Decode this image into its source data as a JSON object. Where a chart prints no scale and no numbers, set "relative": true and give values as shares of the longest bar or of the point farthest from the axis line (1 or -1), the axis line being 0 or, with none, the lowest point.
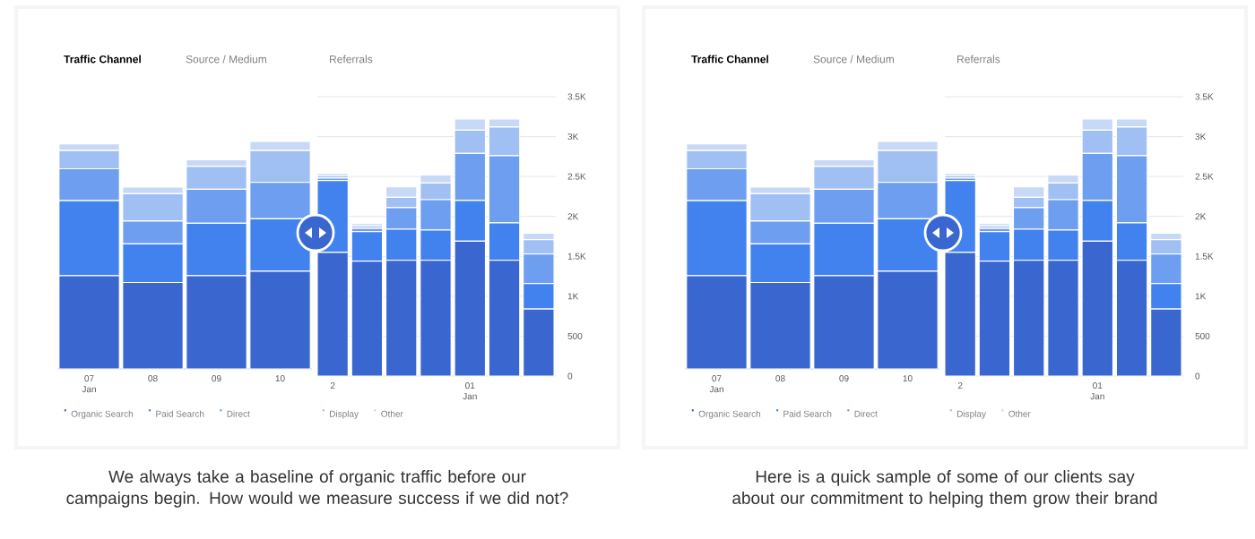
{
  "chart_data": [
    {
      "type": "bar",
      "title": "Traffic Channel",
      "subtitle": "Source / Medium",
      "categories": [
        "07 Jan",
        "08",
        "09",
        "10"
      ],
      "stacked": true,
      "relative": true,
      "legend": "bottom",
      "series": [
        {
          "name": "Organic Search",
          "color": "#3a66d0",
          "values": [
            0.41,
            0.38,
            0.41,
            0.43
          ]
        },
        {
          "name": "Paid Search",
          "color": "#4282ee",
          "values": [
            0.33,
            0.17,
            0.23,
            0.23
          ]
        },
        {
          "name": "Direct",
          "color": "#6d9ef0",
          "values": [
            0.14,
            0.1,
            0.15,
            0.16
          ]
        },
        {
          "color": "#a0bff3",
          "values": [
            0.08,
            0.12,
            0.1,
            0.14
          ]
        },
        {
          "color": "#c8d9f8",
          "values": [
            0.03,
            0.03,
            0.03,
            0.04
          ]
        }
      ],
      "annotations": [
        "We always take a baseline of organic traffic before our campaigns begin. How would we measure success if we did not?"
      ]
    },
    {
      "type": "bar",
      "title": "Referrals",
      "categories": [
        "2",
        null,
        null,
        null,
        "01 Jan",
        null,
        null
      ],
      "stacked": true,
      "ylim": [
        0,
        3500
      ],
      "grid": "y",
      "legend": "bottom",
      "yticks": [
        0,
        500,
        {
          "value": 1000,
          "label": "1K"
        },
        {
          "value": 1500,
          "label": "1.5K"
        },
        {
          "value": 2000,
          "label": "2K"
        },
        {
          "value": 2500,
          "label": "2.5K"
        },
        {
          "value": 3000,
          "label": "3K"
        },
        {
          "value": 3500,
          "label": "3.5K"
        }
      ],
      "series": [
        {
          "color": "#3a66d0",
          "values": [
            1550,
            1440,
            1450,
            1450,
            1690,
            1450,
            840
          ]
        },
        {
          "color": "#4282ee",
          "values": [
            900,
            370,
            390,
            380,
            510,
            470,
            320
          ]
        },
        {
          "color": "#6d9ef0",
          "values": [
            30,
            40,
            270,
            380,
            590,
            840,
            370
          ]
        },
        {
          "name": "Display",
          "color": "#a0bff3",
          "values": [
            30,
            30,
            130,
            210,
            290,
            360,
            180
          ]
        },
        {
          "name": "Other",
          "color": "#c8d9f8",
          "values": [
            30,
            30,
            130,
            100,
            140,
            100,
            80
          ]
        }
      ]
    },
    {
      "type": "bar",
      "title": "Traffic Channel",
      "subtitle": "Source / Medium",
      "categories": [
        "07 Jan",
        "08",
        "09",
        "10"
      ],
      "stacked": true,
      "relative": true,
      "legend": "bottom",
      "series": [
        {
          "name": "Organic Search",
          "color": "#3a66d0",
          "values": [
            0.41,
            0.38,
            0.41,
            0.43
          ]
        },
        {
          "name": "Paid Search",
          "color": "#4282ee",
          "values": [
            0.33,
            0.17,
            0.23,
            0.23
          ]
        },
        {
          "name": "Direct",
          "color": "#6d9ef0",
          "values": [
            0.14,
            0.1,
            0.15,
            0.16
          ]
        },
        {
          "color": "#a0bff3",
          "values": [
            0.08,
            0.12,
            0.1,
            0.14
          ]
        },
        {
          "color": "#c8d9f8",
          "values": [
            0.03,
            0.03,
            0.03,
            0.04
          ]
        }
      ],
      "annotations": [
        "Here is a quick sample of some of our clients say about our commitment to helping them grow their brand"
      ]
    },
    {
      "type": "bar",
      "title": "Referrals",
      "categories": [
        "2",
        null,
        null,
        null,
        "01 Jan",
        null,
        null
      ],
      "stacked": true,
      "ylim": [
        0,
        3500
      ],
      "grid": "y",
      "legend": "bottom",
      "yticks": [
        0,
        500,
        {
          "value": 1000,
          "label": "1K"
        },
        {
          "value": 1500,
          "label": "1.5K"
        },
        {
          "value": 2000,
          "label": "2K"
        },
        {
          "value": 2500,
          "label": "2.5K"
        },
        {
          "value": 3000,
          "label": "3K"
        },
        {
          "value": 3500,
          "label": "3.5K"
        }
      ],
      "series": [
        {
          "color": "#3a66d0",
          "values": [
            1550,
            1440,
            1450,
            1450,
            1690,
            1450,
            840
          ]
        },
        {
          "color": "#4282ee",
          "values": [
            900,
            370,
            390,
            380,
            510,
            470,
            320
          ]
        },
        {
          "color": "#6d9ef0",
          "values": [
            30,
            40,
            270,
            380,
            590,
            840,
            370
          ]
        },
        {
          "name": "Display",
          "color": "#a0bff3",
          "values": [
            30,
            30,
            130,
            210,
            290,
            360,
            180
          ]
        },
        {
          "name": "Other",
          "color": "#c8d9f8",
          "values": [
            30,
            30,
            130,
            100,
            140,
            100,
            80
          ]
        }
      ]
    }
  ]
}
